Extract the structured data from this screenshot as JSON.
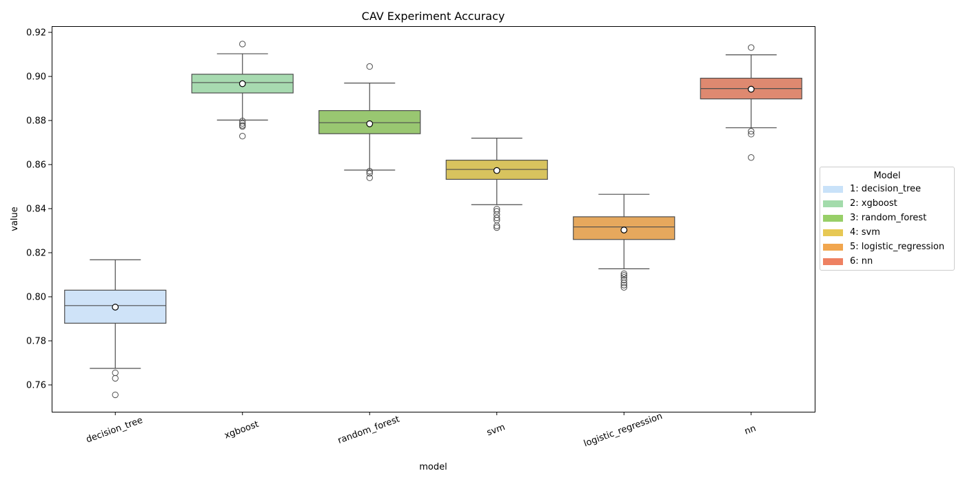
{
  "chart_data": {
    "type": "box",
    "title": "CAV Experiment Accuracy",
    "xlabel": "model",
    "ylabel": "value",
    "ylim": [
      0.748,
      0.923
    ],
    "yticks": [
      0.76,
      0.78,
      0.8,
      0.82,
      0.84,
      0.86,
      0.88,
      0.9,
      0.92
    ],
    "ytick_labels": [
      "0.76",
      "0.78",
      "0.80",
      "0.82",
      "0.84",
      "0.86",
      "0.88",
      "0.90",
      "0.92"
    ],
    "grid": false,
    "legend_position": "outside-right",
    "categories": [
      "decision_tree",
      "xgboost",
      "random_forest",
      "svm",
      "logistic_regression",
      "nn"
    ],
    "boxes": [
      {
        "name": "decision_tree",
        "color": "#cfe3f8",
        "whisker_low": 0.7675,
        "q1": 0.788,
        "median": 0.796,
        "q3": 0.803,
        "whisker_high": 0.8168,
        "mean": 0.7953,
        "outliers": [
          0.7655,
          0.763,
          0.7555
        ]
      },
      {
        "name": "xgboost",
        "color": "#a7dab0",
        "whisker_low": 0.8802,
        "q1": 0.8925,
        "median": 0.8972,
        "q3": 0.901,
        "whisker_high": 0.9103,
        "mean": 0.8967,
        "outliers": [
          0.9147,
          0.8798,
          0.8787,
          0.8778,
          0.8773,
          0.8729
        ]
      },
      {
        "name": "random_forest",
        "color": "#99c771",
        "whisker_low": 0.8575,
        "q1": 0.874,
        "median": 0.879,
        "q3": 0.8845,
        "whisker_high": 0.897,
        "mean": 0.8785,
        "outliers": [
          0.9045,
          0.857,
          0.856,
          0.854
        ]
      },
      {
        "name": "svm",
        "color": "#d8c35e",
        "whisker_low": 0.8418,
        "q1": 0.8533,
        "median": 0.8578,
        "q3": 0.862,
        "whisker_high": 0.872,
        "mean": 0.8573,
        "outliers": [
          0.8398,
          0.8388,
          0.8373,
          0.8358,
          0.8348,
          0.8322,
          0.8314
        ]
      },
      {
        "name": "logistic_regression",
        "color": "#e6a85d",
        "whisker_low": 0.8127,
        "q1": 0.826,
        "median": 0.8317,
        "q3": 0.8363,
        "whisker_high": 0.8465,
        "mean": 0.8303,
        "outliers": [
          0.8105,
          0.8097,
          0.8088,
          0.8076,
          0.8063,
          0.8053,
          0.8043
        ]
      },
      {
        "name": "nn",
        "color": "#de8970",
        "whisker_low": 0.8767,
        "q1": 0.8898,
        "median": 0.8945,
        "q3": 0.8992,
        "whisker_high": 0.9098,
        "mean": 0.8942,
        "outliers": [
          0.9131,
          0.8751,
          0.8738,
          0.8632
        ]
      }
    ]
  },
  "legend": {
    "title": "Model",
    "items": [
      {
        "label": "1: decision_tree",
        "color": "#c9e2f9"
      },
      {
        "label": "2: xgboost",
        "color": "#a3dbab"
      },
      {
        "label": "3: random_forest",
        "color": "#98cf68"
      },
      {
        "label": "4: svm",
        "color": "#e7c854"
      },
      {
        "label": "5: logistic_regression",
        "color": "#f1a64e"
      },
      {
        "label": "6: nn",
        "color": "#ee8162"
      }
    ]
  }
}
